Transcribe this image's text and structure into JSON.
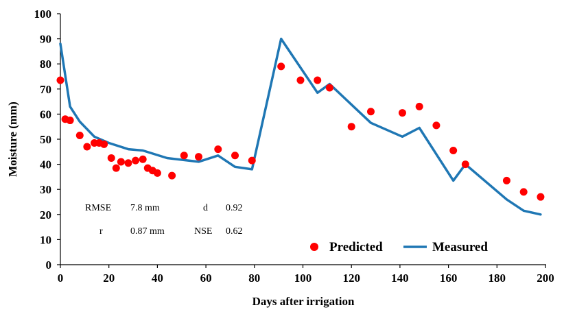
{
  "chart_data": {
    "type": "line",
    "title": "",
    "xlabel": "Days after irrigation",
    "ylabel": "Moisture (mm)",
    "xlim": [
      0,
      200
    ],
    "ylim": [
      0,
      100
    ],
    "x_ticks": [
      0,
      20,
      40,
      60,
      80,
      100,
      120,
      140,
      160,
      180,
      200
    ],
    "y_ticks": [
      0,
      10,
      20,
      30,
      40,
      50,
      60,
      70,
      80,
      90,
      100
    ],
    "grid": false,
    "legend_position": "bottom-right",
    "series": [
      {
        "name": "Predicted",
        "style": "scatter",
        "color": "#ff0000",
        "points": [
          [
            0,
            73.5
          ],
          [
            2,
            58
          ],
          [
            4,
            57.5
          ],
          [
            8,
            51.5
          ],
          [
            11,
            47
          ],
          [
            14,
            48.5
          ],
          [
            16,
            48.5
          ],
          [
            18,
            48
          ],
          [
            21,
            42.5
          ],
          [
            23,
            38.5
          ],
          [
            25,
            41
          ],
          [
            28,
            40.5
          ],
          [
            31,
            41.5
          ],
          [
            34,
            42
          ],
          [
            36,
            38.5
          ],
          [
            38,
            37.5
          ],
          [
            40,
            36.5
          ],
          [
            46,
            35.5
          ],
          [
            51,
            43.5
          ],
          [
            57,
            43
          ],
          [
            65,
            46
          ],
          [
            72,
            43.5
          ],
          [
            79,
            41.5
          ],
          [
            91,
            79
          ],
          [
            99,
            73.5
          ],
          [
            106,
            73.5
          ],
          [
            111,
            70.5
          ],
          [
            120,
            55
          ],
          [
            128,
            61
          ],
          [
            141,
            60.5
          ],
          [
            148,
            63
          ],
          [
            155,
            55.5
          ],
          [
            162,
            45.5
          ],
          [
            167,
            40
          ],
          [
            184,
            33.5
          ],
          [
            191,
            29
          ],
          [
            198,
            27
          ]
        ]
      },
      {
        "name": "Measured",
        "style": "line",
        "color": "#1f77b4",
        "points": [
          [
            0,
            88
          ],
          [
            4,
            63
          ],
          [
            8,
            57
          ],
          [
            14,
            51
          ],
          [
            20,
            48.5
          ],
          [
            28,
            46
          ],
          [
            34,
            45.5
          ],
          [
            44,
            42.5
          ],
          [
            57,
            41
          ],
          [
            65,
            43.5
          ],
          [
            72,
            39
          ],
          [
            79,
            38
          ],
          [
            91,
            90
          ],
          [
            106,
            68.5
          ],
          [
            111,
            72
          ],
          [
            128,
            56.5
          ],
          [
            141,
            51
          ],
          [
            148,
            54.5
          ],
          [
            162,
            33.5
          ],
          [
            167,
            40
          ],
          [
            184,
            26
          ],
          [
            191,
            21.5
          ],
          [
            198,
            20
          ]
        ]
      }
    ],
    "annotations": [
      {
        "label": "RMSE",
        "value": "7.8 mm"
      },
      {
        "label": "d",
        "value": "0.92"
      },
      {
        "label": "r",
        "value": "0.87 mm"
      },
      {
        "label": "NSE",
        "value": "0.62"
      }
    ]
  }
}
